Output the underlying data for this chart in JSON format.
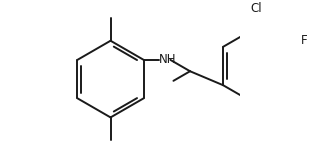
{
  "background": "#ffffff",
  "line_color": "#1a1a1a",
  "line_width": 1.4,
  "font_size": 8.5,
  "label_NH": "NH",
  "label_Cl": "Cl",
  "label_F": "F",
  "figsize": [
    3.1,
    1.46
  ],
  "dpi": 100
}
